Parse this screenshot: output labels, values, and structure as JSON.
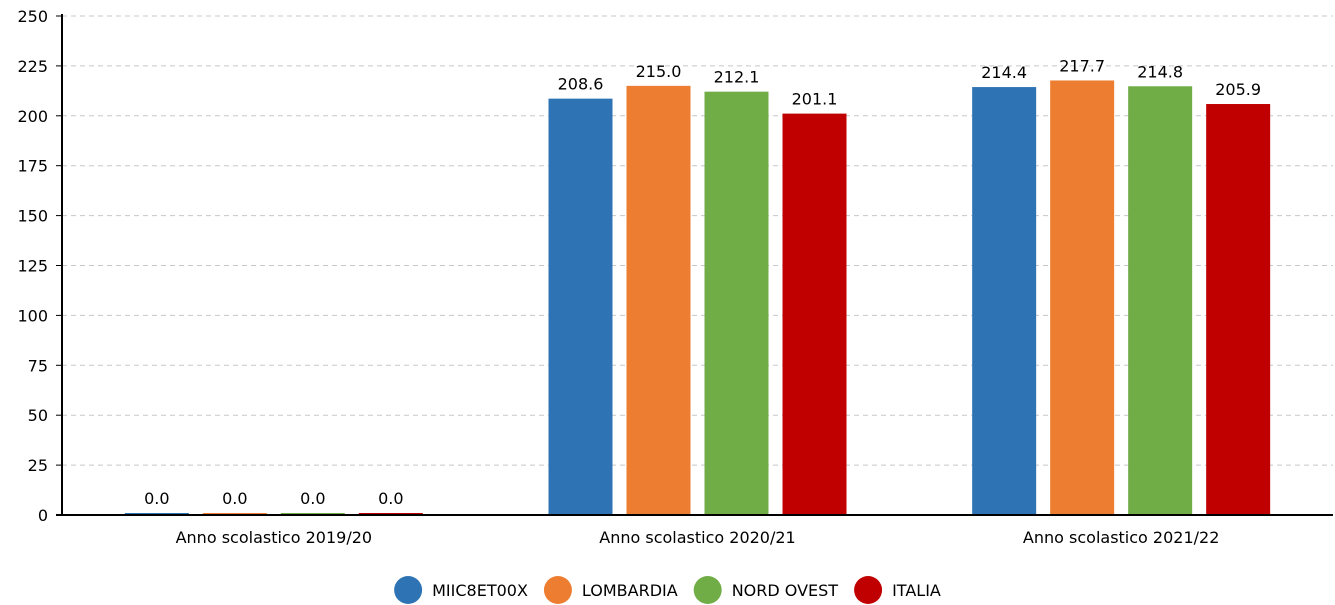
{
  "chart_data": {
    "type": "bar",
    "title": "",
    "xlabel": "",
    "ylabel": "",
    "ylim": [
      0,
      250
    ],
    "yticks": [
      0,
      25,
      50,
      75,
      100,
      125,
      150,
      175,
      200,
      225,
      250
    ],
    "grid": true,
    "legend_position": "bottom",
    "categories": [
      "Anno scolastico 2019/20",
      "Anno scolastico 2020/21",
      "Anno scolastico 2021/22"
    ],
    "series": [
      {
        "name": "MIIC8ET00X",
        "color": "#2e74b5",
        "values": [
          0.0,
          208.6,
          214.4
        ]
      },
      {
        "name": "LOMBARDIA",
        "color": "#ed7d31",
        "values": [
          0.0,
          215.0,
          217.7
        ]
      },
      {
        "name": "NORD OVEST",
        "color": "#70ad47",
        "values": [
          0.0,
          212.1,
          214.8
        ]
      },
      {
        "name": "ITALIA",
        "color": "#c00000",
        "values": [
          0.0,
          201.1,
          205.9
        ]
      }
    ]
  }
}
